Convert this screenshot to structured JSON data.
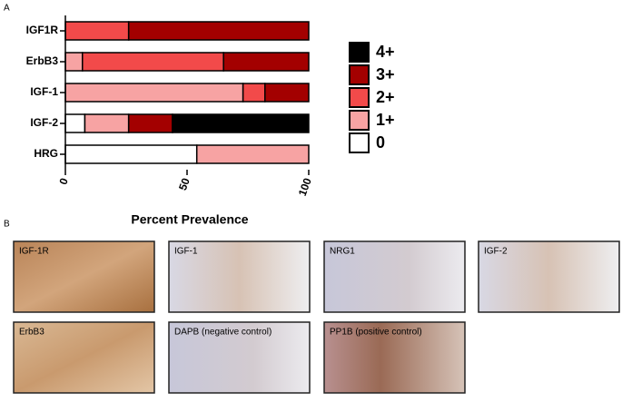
{
  "panel_labels": [
    "A",
    "B"
  ],
  "chart_data": {
    "type": "stacked-barh",
    "xlabel": "Percent Prevalence",
    "categories": [
      "IGF1R",
      "ErbB3",
      "IGF-1",
      "IGF-2",
      "HRG"
    ],
    "series": [
      {
        "name": "0",
        "color": "#ffffff",
        "values": [
          0,
          0,
          0,
          8,
          54
        ]
      },
      {
        "name": "1+",
        "color": "#f7a3a3",
        "values": [
          0,
          7,
          73,
          18,
          46
        ]
      },
      {
        "name": "2+",
        "color": "#f24a4a",
        "values": [
          26,
          58,
          9,
          0,
          0
        ]
      },
      {
        "name": "3+",
        "color": "#a30000",
        "values": [
          74,
          35,
          18,
          18,
          0
        ]
      },
      {
        "name": "4+",
        "color": "#000000",
        "values": [
          0,
          0,
          0,
          56,
          0
        ]
      }
    ],
    "xlim": [
      0,
      100
    ],
    "xticks": [
      0,
      50,
      100
    ],
    "legend": "right"
  },
  "images": [
    {
      "label": "IGF-1R"
    },
    {
      "label": "IGF-1"
    },
    {
      "label": "NRG1"
    },
    {
      "label": "IGF-2"
    },
    {
      "label": "ErbB3"
    },
    {
      "label": "DAPB (negative control)"
    },
    {
      "label": "PP1B (positive control)"
    }
  ]
}
